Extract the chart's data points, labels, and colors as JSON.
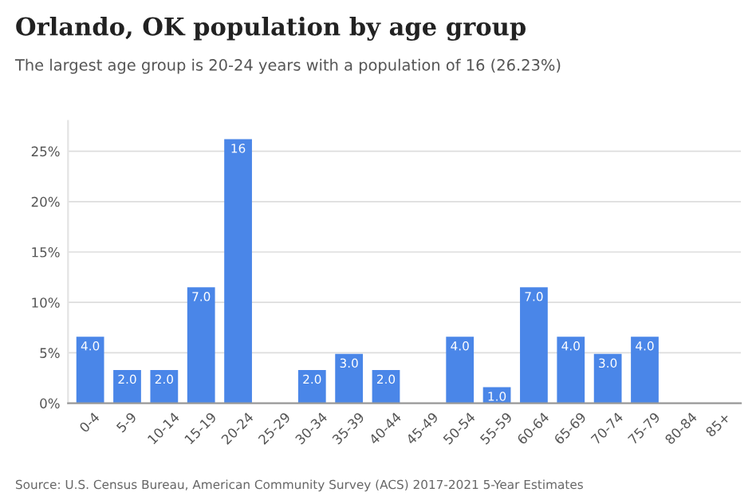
{
  "chart_data": {
    "type": "bar",
    "title": "Orlando, OK population by age group",
    "subtitle": "The largest age group is 20-24 years with a population of 16 (26.23%)",
    "categories": [
      "0-4",
      "5-9",
      "10-14",
      "15-19",
      "20-24",
      "25-29",
      "30-34",
      "35-39",
      "40-44",
      "45-49",
      "50-54",
      "55-59",
      "60-64",
      "65-69",
      "70-74",
      "75-79",
      "80-84",
      "85+"
    ],
    "values": [
      6.6,
      3.3,
      3.3,
      11.5,
      26.2,
      0,
      3.3,
      4.9,
      3.3,
      0,
      6.6,
      1.6,
      11.5,
      6.6,
      4.9,
      6.6,
      0,
      0
    ],
    "color": "#4a86e8",
    "ylim": [
      0,
      28
    ],
    "yticks": [
      {
        "value": 0,
        "label": "0%"
      },
      {
        "value": 5,
        "label": "5%"
      },
      {
        "value": 10,
        "label": "10%"
      },
      {
        "value": 15,
        "label": "15%"
      },
      {
        "value": 20,
        "label": "20%"
      },
      {
        "value": 25,
        "label": "25%"
      }
    ],
    "grid": "y",
    "annotations": [
      {
        "text": "4.0",
        "x": "0-4",
        "y": 6.6
      },
      {
        "text": "2.0",
        "x": "5-9",
        "y": 3.3
      },
      {
        "text": "2.0",
        "x": "10-14",
        "y": 3.3
      },
      {
        "text": "7.0",
        "x": "15-19",
        "y": 11.5
      },
      {
        "text": "16",
        "x": "20-24",
        "y": 26.2
      },
      {
        "text": "2.0",
        "x": "30-34",
        "y": 3.3
      },
      {
        "text": "3.0",
        "x": "35-39",
        "y": 4.9
      },
      {
        "text": "2.0",
        "x": "40-44",
        "y": 3.3
      },
      {
        "text": "4.0",
        "x": "50-54",
        "y": 6.6
      },
      {
        "text": "1.0",
        "x": "55-59",
        "y": 1.6
      },
      {
        "text": "7.0",
        "x": "60-64",
        "y": 11.5
      },
      {
        "text": "4.0",
        "x": "65-69",
        "y": 6.6
      },
      {
        "text": "3.0",
        "x": "70-74",
        "y": 4.9
      },
      {
        "text": "4.0",
        "x": "75-79",
        "y": 6.6
      },
      "Source: U.S. Census Bureau, American Community Survey (ACS) 2017-2021 5-Year Estimates"
    ]
  }
}
